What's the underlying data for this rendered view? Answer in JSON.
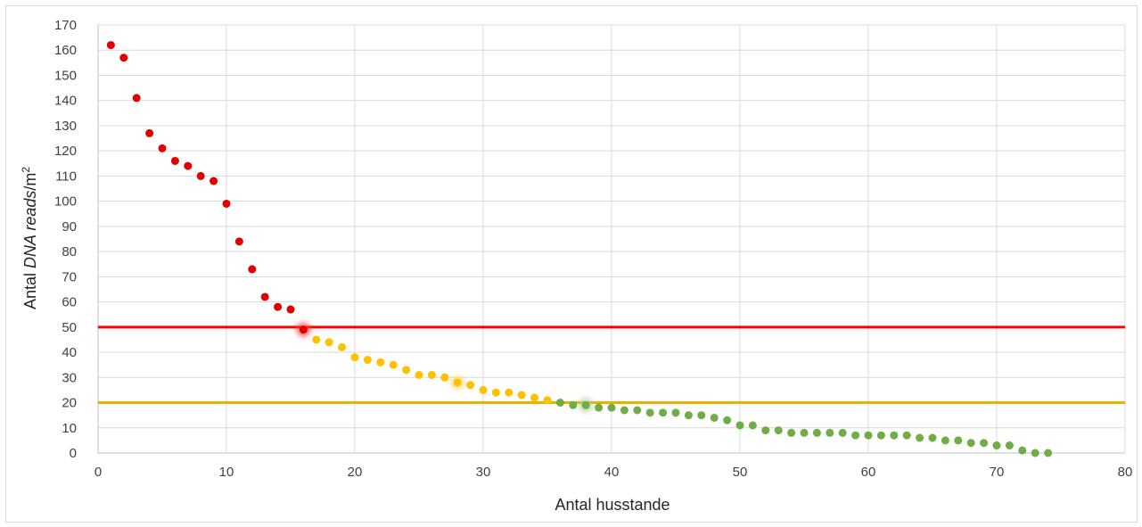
{
  "chart_data": {
    "type": "scatter",
    "xlabel": "Antal husstande",
    "ylabel": {
      "prefix": "Antal ",
      "italic": "DNA reads",
      "suffix": "/m",
      "sup": "2"
    },
    "xlim": [
      0,
      80
    ],
    "ylim": [
      0,
      170
    ],
    "xticks": [
      0,
      10,
      20,
      30,
      40,
      50,
      60,
      70,
      80
    ],
    "yticks": [
      0,
      10,
      20,
      30,
      40,
      50,
      60,
      70,
      80,
      90,
      100,
      110,
      120,
      130,
      140,
      150,
      160,
      170
    ],
    "grid": true,
    "thresholds": [
      {
        "y": 50,
        "color": "#ff0000"
      },
      {
        "y": 20,
        "color": "#e6b400"
      }
    ],
    "colors": {
      "high": "#e00000",
      "mid": "#ffc000",
      "low": "#70ad47"
    },
    "series": [
      {
        "group": "high",
        "color": "#e00000",
        "points": [
          [
            1,
            162
          ],
          [
            2,
            157
          ],
          [
            3,
            141
          ],
          [
            4,
            127
          ],
          [
            5,
            121
          ],
          [
            6,
            116
          ],
          [
            7,
            114
          ],
          [
            8,
            110
          ],
          [
            9,
            108
          ],
          [
            10,
            99
          ],
          [
            11,
            84
          ],
          [
            12,
            73
          ],
          [
            13,
            62
          ],
          [
            14,
            58
          ],
          [
            15,
            57
          ],
          [
            16,
            49
          ]
        ]
      },
      {
        "group": "mid",
        "color": "#ffc000",
        "points": [
          [
            17,
            45
          ],
          [
            18,
            44
          ],
          [
            19,
            42
          ],
          [
            20,
            38
          ],
          [
            21,
            37
          ],
          [
            22,
            36
          ],
          [
            23,
            35
          ],
          [
            24,
            33
          ],
          [
            25,
            31
          ],
          [
            26,
            31
          ],
          [
            27,
            30
          ],
          [
            28,
            28
          ],
          [
            29,
            27
          ],
          [
            30,
            25
          ],
          [
            31,
            24
          ],
          [
            32,
            24
          ],
          [
            33,
            23
          ],
          [
            34,
            22
          ],
          [
            35,
            21
          ]
        ]
      },
      {
        "group": "low",
        "color": "#70ad47",
        "points": [
          [
            36,
            20
          ],
          [
            37,
            19
          ],
          [
            38,
            19
          ],
          [
            39,
            18
          ],
          [
            40,
            18
          ],
          [
            41,
            17
          ],
          [
            42,
            17
          ],
          [
            43,
            16
          ],
          [
            44,
            16
          ],
          [
            45,
            16
          ],
          [
            46,
            15
          ],
          [
            47,
            15
          ],
          [
            48,
            14
          ],
          [
            49,
            13
          ],
          [
            50,
            11
          ],
          [
            51,
            11
          ],
          [
            52,
            9
          ],
          [
            53,
            9
          ],
          [
            54,
            8
          ],
          [
            55,
            8
          ],
          [
            56,
            8
          ],
          [
            57,
            8
          ],
          [
            58,
            8
          ],
          [
            59,
            7
          ],
          [
            60,
            7
          ],
          [
            61,
            7
          ],
          [
            62,
            7
          ],
          [
            63,
            7
          ],
          [
            64,
            6
          ],
          [
            65,
            6
          ],
          [
            66,
            5
          ],
          [
            67,
            5
          ],
          [
            68,
            4
          ],
          [
            69,
            4
          ],
          [
            70,
            3
          ],
          [
            71,
            3
          ],
          [
            72,
            1
          ],
          [
            73,
            0
          ],
          [
            74,
            0
          ]
        ]
      }
    ],
    "highlighted_points": [
      {
        "x": 16,
        "y": 49,
        "color": "#ff4040"
      },
      {
        "x": 28,
        "y": 28,
        "color": "#ffd966"
      },
      {
        "x": 38,
        "y": 19,
        "color": "#a9d18e"
      }
    ]
  }
}
